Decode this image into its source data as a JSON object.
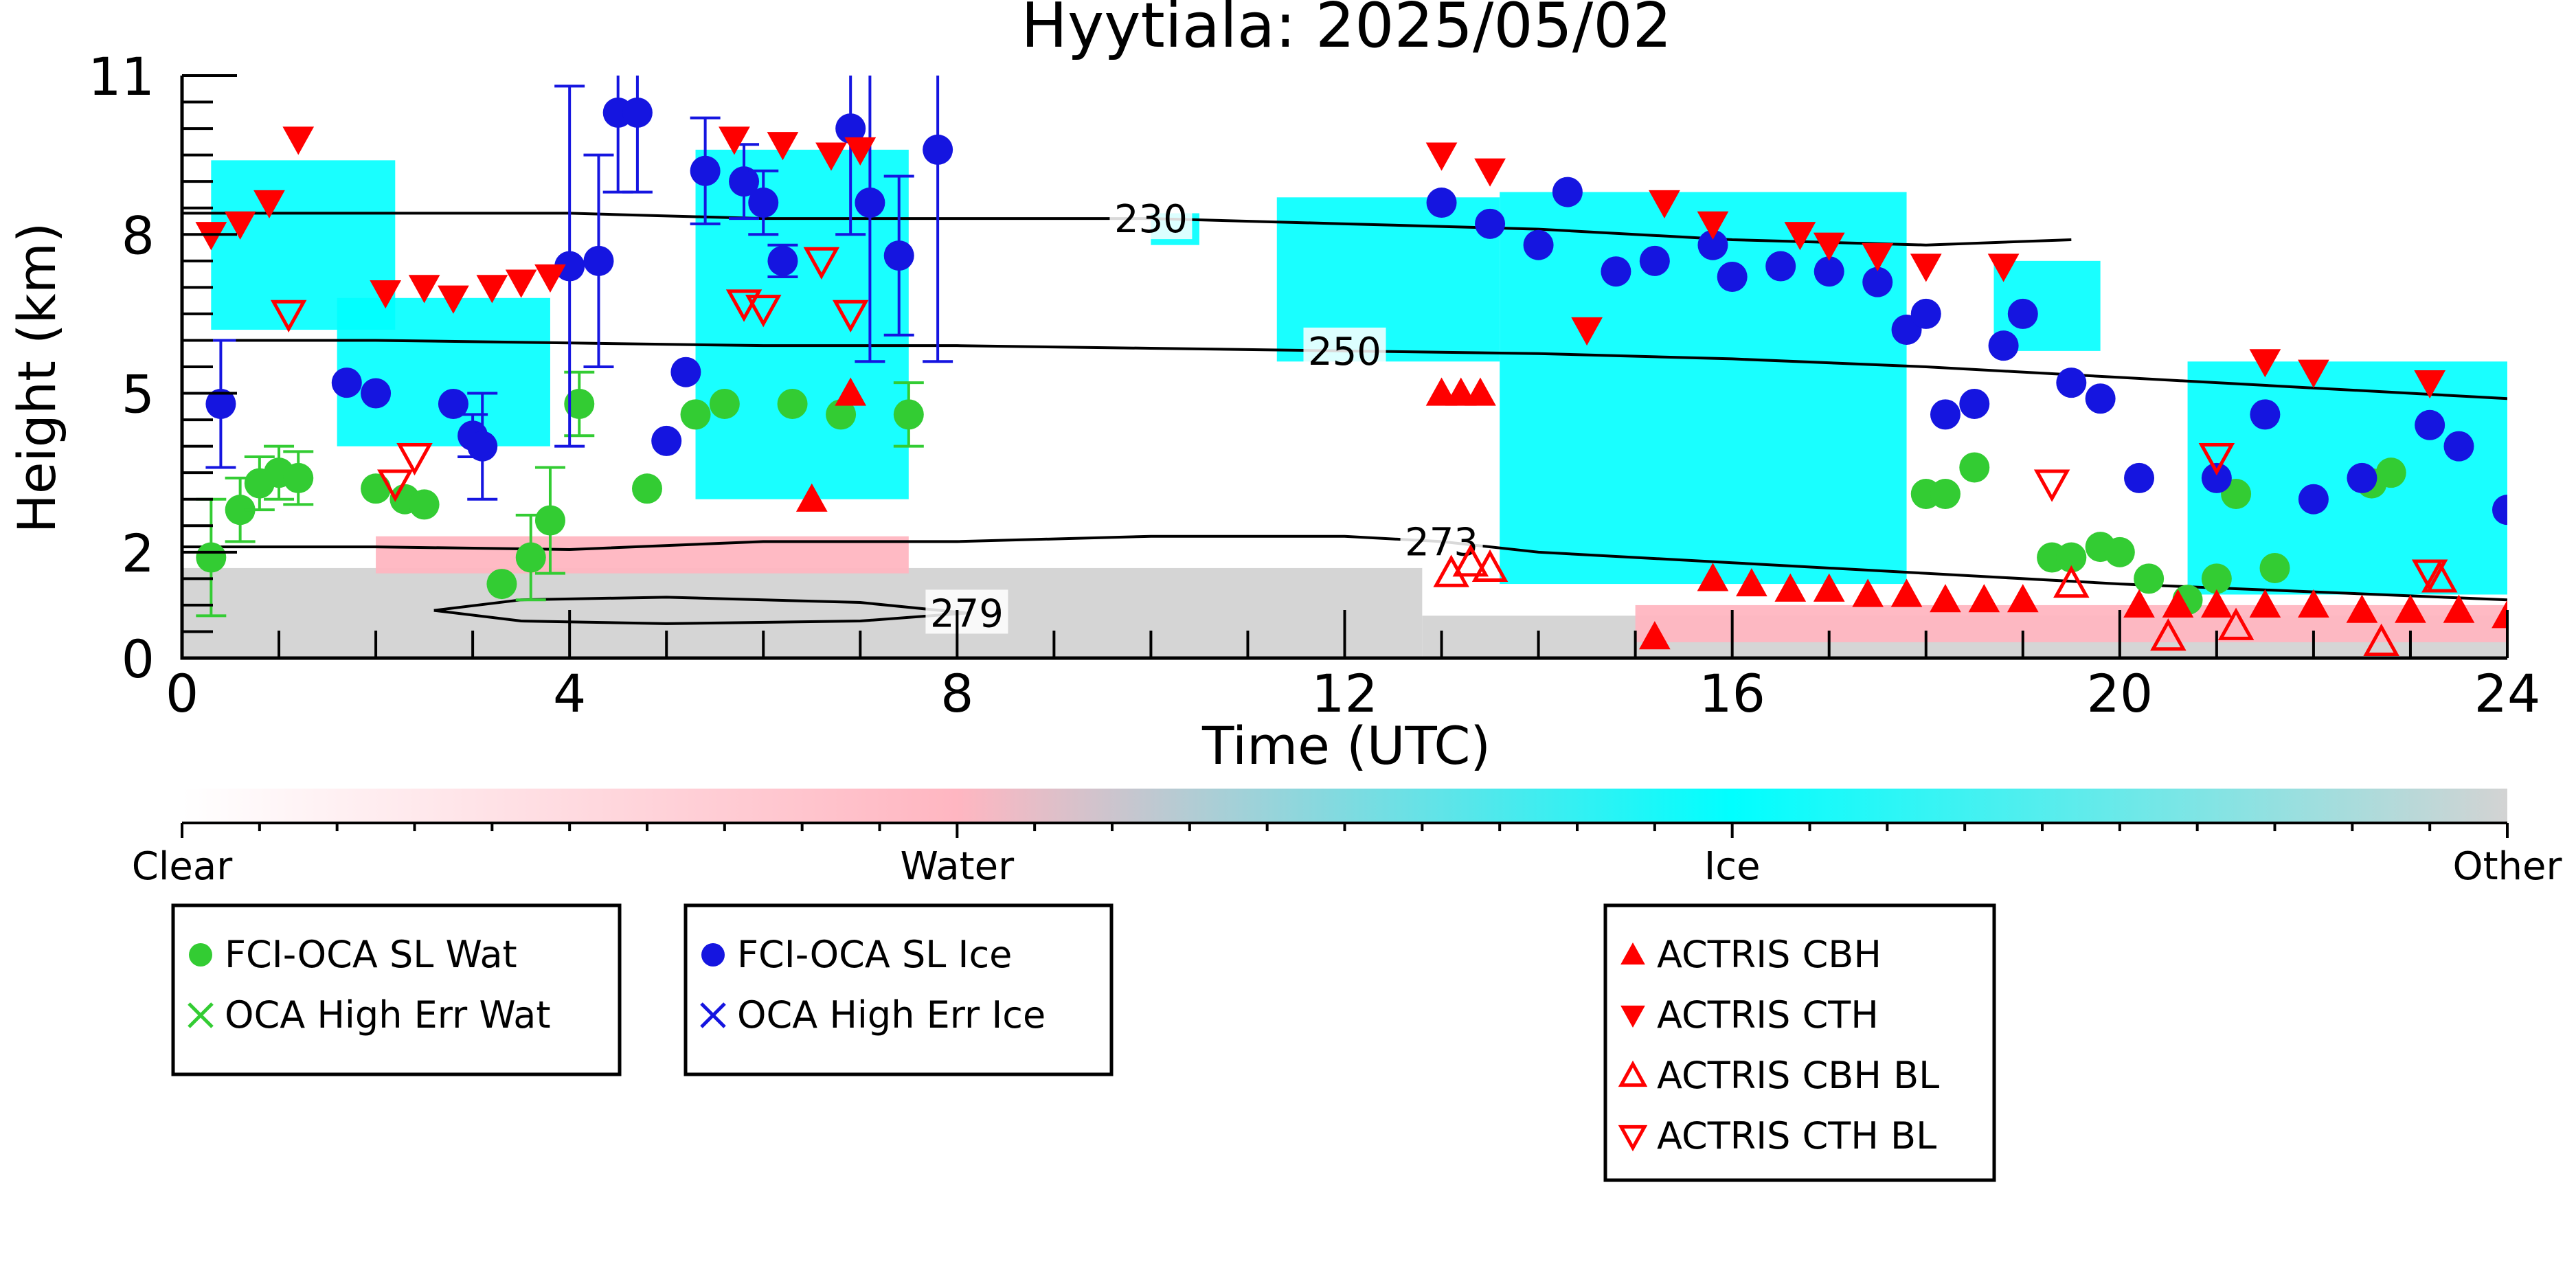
{
  "chart_data": {
    "type": "scatter",
    "title": "Hyytiala: 2025/05/02",
    "xlabel": "Time (UTC)",
    "ylabel": "Height (km)",
    "xlim": [
      0,
      24
    ],
    "ylim": [
      0,
      11
    ],
    "x_ticks": [
      0,
      4,
      8,
      12,
      16,
      20,
      24
    ],
    "y_ticks": [
      0,
      2,
      5,
      8,
      11
    ],
    "colorbar": {
      "labels": [
        "Clear",
        "Water",
        "Ice",
        "Other"
      ],
      "colors": [
        "#ffffff",
        "#ffb6c1",
        "#00ffff",
        "#d3d3d3"
      ]
    },
    "contours": [
      {
        "label": "230",
        "x": [
          0,
          2,
          4,
          6,
          8,
          10,
          12,
          14,
          16,
          18,
          19.5
        ],
        "y": [
          8.4,
          8.4,
          8.4,
          8.3,
          8.3,
          8.3,
          8.2,
          8.1,
          7.9,
          7.8,
          7.9
        ]
      },
      {
        "label": "250",
        "x": [
          0,
          2,
          4,
          6,
          8,
          10,
          12,
          14,
          16,
          18,
          20,
          22,
          24
        ],
        "y": [
          6.0,
          6.0,
          5.95,
          5.9,
          5.9,
          5.85,
          5.8,
          5.75,
          5.65,
          5.5,
          5.3,
          5.1,
          4.9
        ]
      },
      {
        "label": "273",
        "x": [
          0,
          2,
          4,
          6,
          8,
          10,
          12,
          13,
          14,
          16,
          18,
          20,
          22,
          24
        ],
        "y": [
          2.1,
          2.1,
          2.05,
          2.2,
          2.2,
          2.3,
          2.3,
          2.2,
          2.0,
          1.8,
          1.6,
          1.4,
          1.25,
          1.1
        ]
      },
      {
        "label": "279",
        "x": [
          2.6,
          3.5,
          5,
          7,
          8.1,
          7,
          5,
          3.5,
          2.6
        ],
        "y": [
          0.9,
          1.1,
          1.15,
          1.05,
          0.85,
          0.7,
          0.65,
          0.7,
          0.9
        ]
      }
    ],
    "series": [
      {
        "name": "FCI-OCA SL Wat",
        "color": "#33cc33",
        "marker": "circle",
        "x": [
          0.3,
          0.6,
          0.8,
          1.0,
          1.2,
          2.0,
          2.3,
          2.5,
          3.3,
          3.6,
          3.8,
          4.1,
          4.8,
          5.3,
          5.6,
          6.3,
          6.8,
          7.5,
          18.0,
          18.2,
          18.5,
          19.3,
          19.5,
          19.8,
          20.0,
          20.3,
          20.7,
          21.0,
          21.2,
          21.6,
          22.6,
          22.8
        ],
        "y": [
          1.9,
          2.8,
          3.3,
          3.5,
          3.4,
          3.2,
          3.0,
          2.9,
          1.4,
          1.9,
          2.6,
          4.8,
          3.2,
          4.6,
          4.8,
          4.8,
          4.6,
          4.6,
          3.1,
          3.1,
          3.6,
          1.9,
          1.9,
          2.1,
          2.0,
          1.5,
          1.1,
          1.5,
          3.1,
          1.7,
          3.3,
          3.5
        ],
        "err": [
          1.1,
          0.6,
          0.5,
          0.5,
          0.5,
          0.2,
          0.2,
          0.2,
          0.2,
          0.8,
          1.0,
          0.6,
          0.2,
          0.2,
          0.2,
          0.2,
          0.2,
          0.6,
          0.2,
          0.2,
          0.2,
          0.2,
          0.2,
          0.2,
          0.2,
          0.2,
          0.2,
          0.2,
          0.2,
          0.2,
          0.2,
          0.2
        ]
      },
      {
        "name": "FCI-OCA SL Ice",
        "color": "#1515e0",
        "marker": "circle",
        "x": [
          0.4,
          1.7,
          2.0,
          2.8,
          3.0,
          3.1,
          4.0,
          4.3,
          4.5,
          4.7,
          5.0,
          5.2,
          5.4,
          5.8,
          6.0,
          6.2,
          6.9,
          7.1,
          7.4,
          7.8,
          13.0,
          13.5,
          14.0,
          14.3,
          14.8,
          15.2,
          15.8,
          16.0,
          16.5,
          17.0,
          17.5,
          17.8,
          18.0,
          18.2,
          18.5,
          18.8,
          19.0,
          19.5,
          19.8,
          20.2,
          21.0,
          21.5,
          22.0,
          22.5,
          23.2,
          23.5,
          24.0
        ],
        "y": [
          4.8,
          5.2,
          5.0,
          4.8,
          4.2,
          4.0,
          7.4,
          7.5,
          10.3,
          10.3,
          4.1,
          5.4,
          9.2,
          9.0,
          8.6,
          7.5,
          10.0,
          8.6,
          7.6,
          9.6,
          8.6,
          8.2,
          7.8,
          8.8,
          7.3,
          7.5,
          7.8,
          7.2,
          7.4,
          7.3,
          7.1,
          6.2,
          6.5,
          4.6,
          4.8,
          5.9,
          6.5,
          5.2,
          4.9,
          3.4,
          3.4,
          4.6,
          3.0,
          3.4,
          4.4,
          4.0,
          2.8
        ],
        "err": [
          1.2,
          0.2,
          0.2,
          0.2,
          0.4,
          1.0,
          3.4,
          2.0,
          1.5,
          1.5,
          0.2,
          0.2,
          1.0,
          0.7,
          0.6,
          0.3,
          2.0,
          3.0,
          1.5,
          4.0,
          0.2,
          0.2,
          0.2,
          0.2,
          0.2,
          0.2,
          0.2,
          0.2,
          0.2,
          0.2,
          0.2,
          0.2,
          0.2,
          0.2,
          0.2,
          0.2,
          0.2,
          0.2,
          0.2,
          0.2,
          0.2,
          0.2,
          0.2,
          0.2,
          0.2,
          0.2,
          0.2
        ]
      },
      {
        "name": "OCA High Err Wat",
        "color": "#33cc33",
        "marker": "x",
        "x": [],
        "y": []
      },
      {
        "name": "OCA High Err Ice",
        "color": "#1515e0",
        "marker": "x",
        "x": [],
        "y": []
      },
      {
        "name": "ACTRIS CBH",
        "color": "#ff0000",
        "marker": "triangle-up",
        "x": [
          13.0,
          13.2,
          13.4,
          15.2,
          15.8,
          16.2,
          16.6,
          17.0,
          17.4,
          17.8,
          18.2,
          18.6,
          19.0,
          20.2,
          20.6,
          21.0,
          21.5,
          22.0,
          22.5,
          23.0,
          23.5,
          24.0,
          6.5,
          6.9
        ],
        "y": [
          5.0,
          5.0,
          5.0,
          0.4,
          1.5,
          1.4,
          1.3,
          1.3,
          1.2,
          1.2,
          1.1,
          1.1,
          1.1,
          1.0,
          1.0,
          1.0,
          1.0,
          1.0,
          0.9,
          0.9,
          0.9,
          0.8,
          3.0,
          5.0
        ]
      },
      {
        "name": "ACTRIS CTH",
        "color": "#ff0000",
        "marker": "triangle-down",
        "x": [
          0.3,
          0.6,
          0.9,
          1.2,
          2.1,
          2.5,
          2.8,
          3.2,
          3.5,
          3.8,
          5.7,
          6.2,
          6.7,
          7.0,
          13.0,
          13.5,
          14.5,
          15.3,
          15.8,
          16.7,
          17.0,
          17.5,
          18.0,
          18.8,
          21.5,
          22.0,
          23.2
        ],
        "y": [
          8.0,
          8.2,
          8.6,
          9.8,
          6.9,
          7.0,
          6.8,
          7.0,
          7.1,
          7.2,
          9.8,
          9.7,
          9.5,
          9.6,
          9.5,
          9.2,
          6.2,
          8.6,
          8.2,
          8.0,
          7.8,
          7.6,
          7.4,
          7.4,
          5.6,
          5.4,
          5.2
        ]
      },
      {
        "name": "ACTRIS CBH BL",
        "color": "#ff0000",
        "marker": "triangle-up-open",
        "x": [
          13.1,
          13.3,
          13.5,
          19.5,
          20.5,
          21.2,
          22.7,
          23.3
        ],
        "y": [
          1.6,
          1.8,
          1.7,
          1.4,
          0.4,
          0.6,
          0.3,
          1.5
        ]
      },
      {
        "name": "ACTRIS CTH BL",
        "color": "#ff0000",
        "marker": "triangle-down-open",
        "x": [
          1.1,
          2.2,
          2.4,
          5.8,
          6.0,
          6.6,
          6.9,
          19.3,
          21.0,
          23.2
        ],
        "y": [
          6.5,
          3.3,
          3.8,
          6.7,
          6.6,
          7.5,
          6.5,
          3.3,
          3.8,
          1.6
        ]
      }
    ]
  }
}
